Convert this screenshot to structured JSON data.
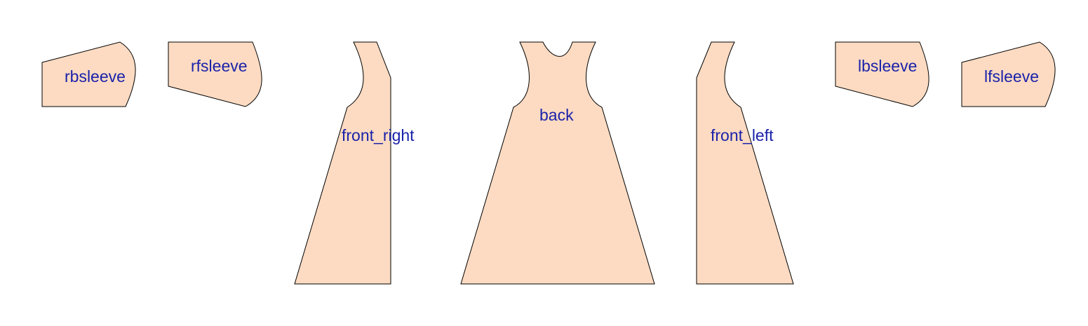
{
  "diagram": {
    "fill_color": "#fddbc2",
    "label_color": "#1a22aa",
    "stroke_color": "#000000",
    "pieces": [
      {
        "id": "rbsleeve",
        "label": "rbsleeve"
      },
      {
        "id": "rfsleeve",
        "label": "rfsleeve"
      },
      {
        "id": "front_right",
        "label": "front_right"
      },
      {
        "id": "back",
        "label": "back"
      },
      {
        "id": "front_left",
        "label": "front_left"
      },
      {
        "id": "lbsleeve",
        "label": "lbsleeve"
      },
      {
        "id": "lfsleeve",
        "label": "lfsleeve"
      }
    ]
  }
}
